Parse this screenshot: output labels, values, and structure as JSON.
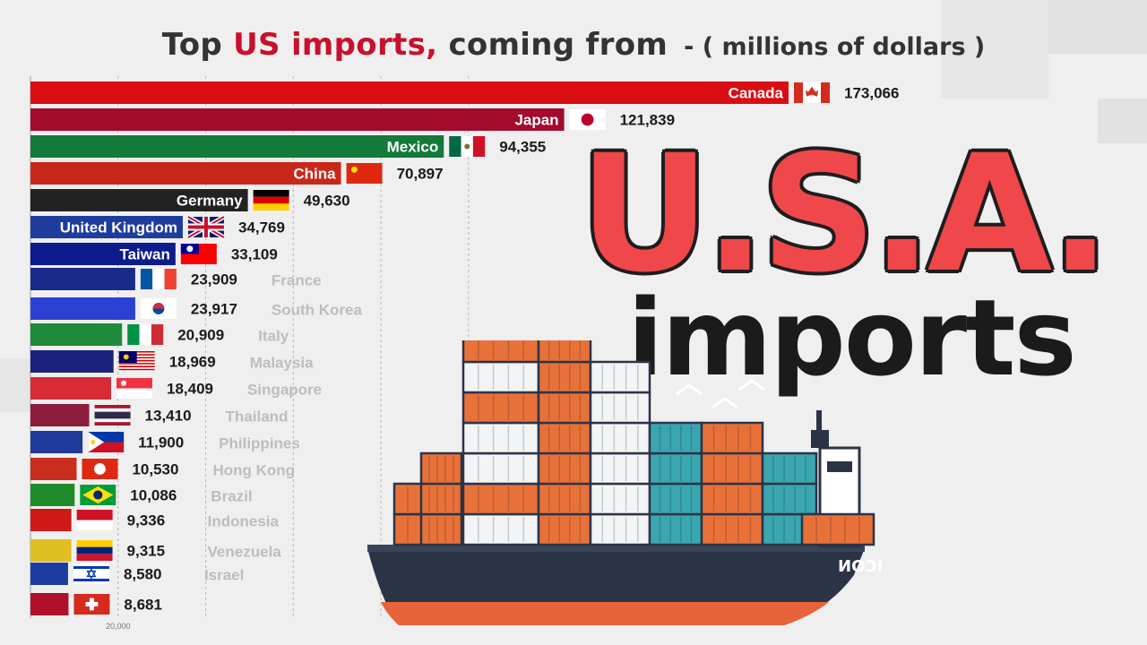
{
  "title": {
    "prefix": "Top ",
    "accent": "US imports,",
    "suffix": " coming from",
    "units": "- ( millions of dollars )"
  },
  "headline": {
    "main": "U.S.A.",
    "sub": "imports"
  },
  "ship_label": "ICON",
  "colors": {
    "accent": "#c8102e",
    "headline": "#f0474b"
  },
  "chart_data": {
    "type": "bar",
    "orientation": "horizontal",
    "title": "Top US imports, coming from - ( millions of dollars )",
    "x_tick_labels": [
      "20,000"
    ],
    "grid": true,
    "categories": [
      "Canada",
      "Japan",
      "Mexico",
      "China",
      "Germany",
      "United Kingdom",
      "Taiwan",
      "France",
      "South Korea",
      "Italy",
      "Malaysia",
      "Singapore",
      "Thailand",
      "Philippines",
      "Hong Kong",
      "Brazil",
      "Indonesia",
      "Venezuela",
      "Israel",
      ""
    ],
    "values": [
      173066,
      121839,
      94355,
      70897,
      49630,
      34769,
      33109,
      23909,
      23917,
      20909,
      18969,
      18409,
      13410,
      11900,
      10530,
      10086,
      9336,
      9315,
      8580,
      8681
    ],
    "value_labels": [
      "173,066",
      "121,839",
      "94,355",
      "70,897",
      "49,630",
      "34,769",
      "33,109",
      "23,909",
      "23,917",
      "20,909",
      "18,969",
      "18,409",
      "13,410",
      "11,900",
      "10,530",
      "10,086",
      "9,336",
      "9,315",
      "8,580",
      "8,681"
    ],
    "bar_colors": [
      "#d90d12",
      "#a30a2c",
      "#127a3a",
      "#c8281a",
      "#222222",
      "#1e3c9c",
      "#0d1b8c",
      "#1a2a8a",
      "#2a41d4",
      "#1e8a3a",
      "#1a237e",
      "#d92b36",
      "#8c1c3c",
      "#203a9a",
      "#c82d1e",
      "#1f8a2a",
      "#d11818",
      "#e0c020",
      "#1d3ca0",
      "#b0102a"
    ],
    "flags": [
      "canada",
      "japan",
      "mexico",
      "china",
      "germany",
      "uk",
      "taiwan",
      "france",
      "south-korea",
      "italy",
      "malaysia",
      "singapore",
      "thailand",
      "philippines",
      "hong-kong",
      "brazil",
      "indonesia",
      "venezuela",
      "israel",
      "switzerland"
    ]
  }
}
